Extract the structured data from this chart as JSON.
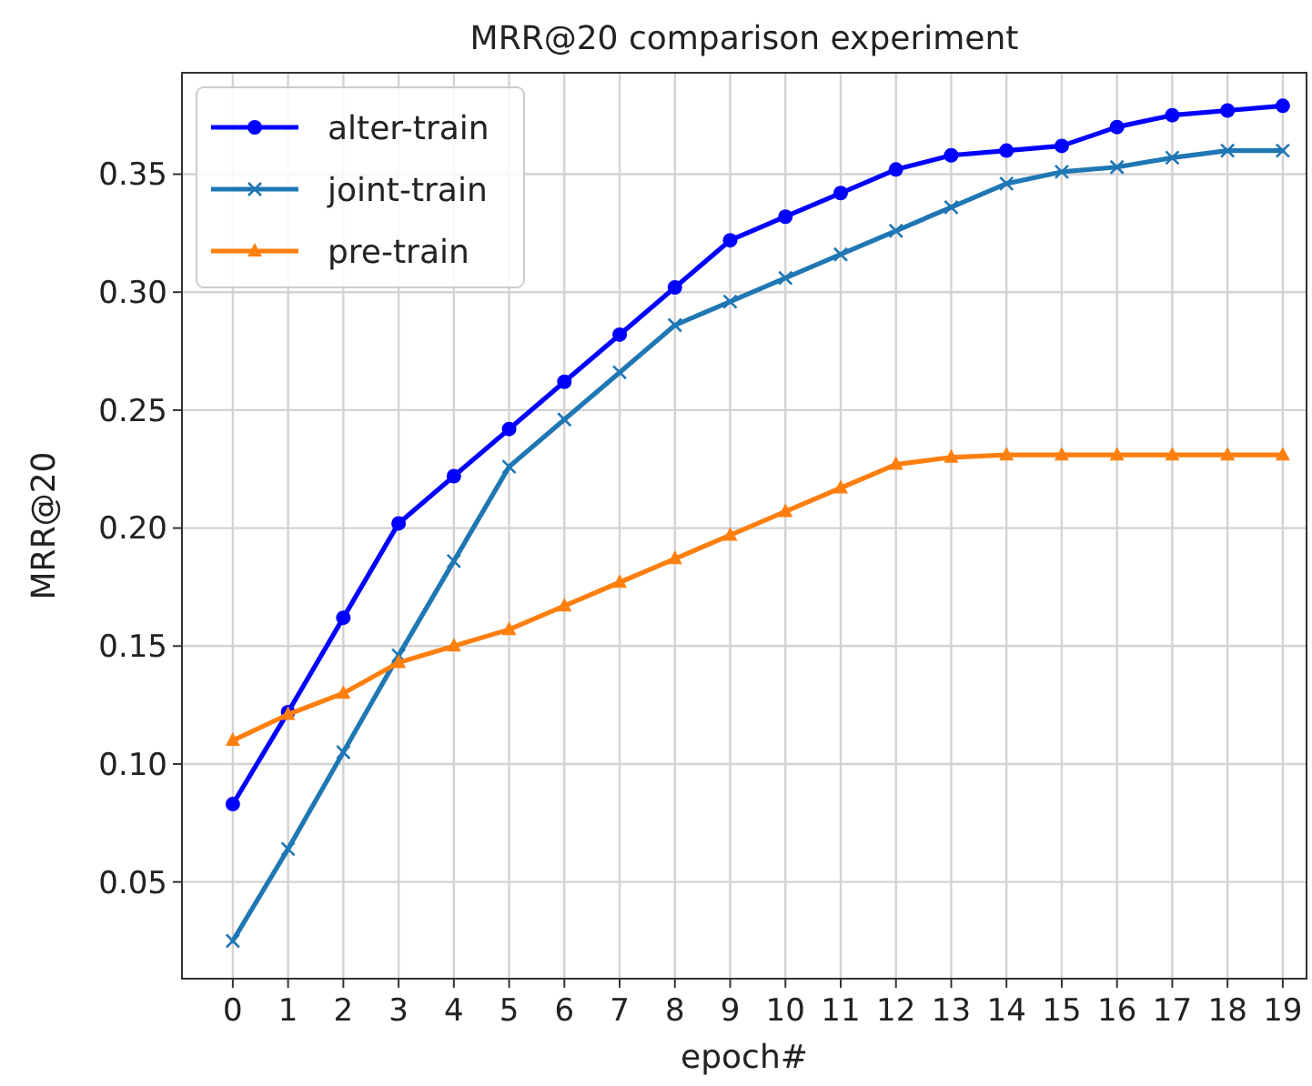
{
  "chart_data": {
    "type": "line",
    "title": "MRR@20 comparison experiment",
    "xlabel": "epoch#",
    "ylabel": "MRR@20",
    "x": [
      0,
      1,
      2,
      3,
      4,
      5,
      6,
      7,
      8,
      9,
      10,
      11,
      12,
      13,
      14,
      15,
      16,
      17,
      18,
      19
    ],
    "xlim": [
      -0.92,
      19.43
    ],
    "xticks": [
      0,
      1,
      2,
      3,
      4,
      5,
      6,
      7,
      8,
      9,
      10,
      11,
      12,
      13,
      14,
      15,
      16,
      17,
      18,
      19
    ],
    "ylim": [
      0.009,
      0.393
    ],
    "yticks": [
      {
        "value": 0.05,
        "label": "0.05"
      },
      {
        "value": 0.1,
        "label": "0.10"
      },
      {
        "value": 0.15,
        "label": "0.15"
      },
      {
        "value": 0.2,
        "label": "0.20"
      },
      {
        "value": 0.25,
        "label": "0.25"
      },
      {
        "value": 0.3,
        "label": "0.30"
      },
      {
        "value": 0.35,
        "label": "0.35"
      }
    ],
    "grid": true,
    "legend": "top left",
    "line_style": "solid",
    "series": [
      {
        "name": "alter-train",
        "color": "#0000ff",
        "marker": "circle",
        "values": [
          0.083,
          0.122,
          0.162,
          0.202,
          0.222,
          0.242,
          0.262,
          0.282,
          0.302,
          0.322,
          0.332,
          0.342,
          0.352,
          0.358,
          0.36,
          0.362,
          0.37,
          0.375,
          0.377,
          0.379
        ]
      },
      {
        "name": "joint-train",
        "color": "#1f77b4",
        "marker": "cross",
        "values": [
          0.025,
          0.064,
          0.105,
          0.146,
          0.186,
          0.226,
          0.246,
          0.266,
          0.286,
          0.296,
          0.306,
          0.316,
          0.326,
          0.336,
          0.346,
          0.351,
          0.353,
          0.357,
          0.36,
          0.36
        ]
      },
      {
        "name": "pre-train",
        "color": "#ff7f0e",
        "marker": "triangle",
        "values": [
          0.11,
          0.121,
          0.13,
          0.143,
          0.15,
          0.157,
          0.167,
          0.177,
          0.187,
          0.197,
          0.207,
          0.217,
          0.227,
          0.23,
          0.231,
          0.231,
          0.231,
          0.231,
          0.231,
          0.231
        ]
      }
    ]
  }
}
